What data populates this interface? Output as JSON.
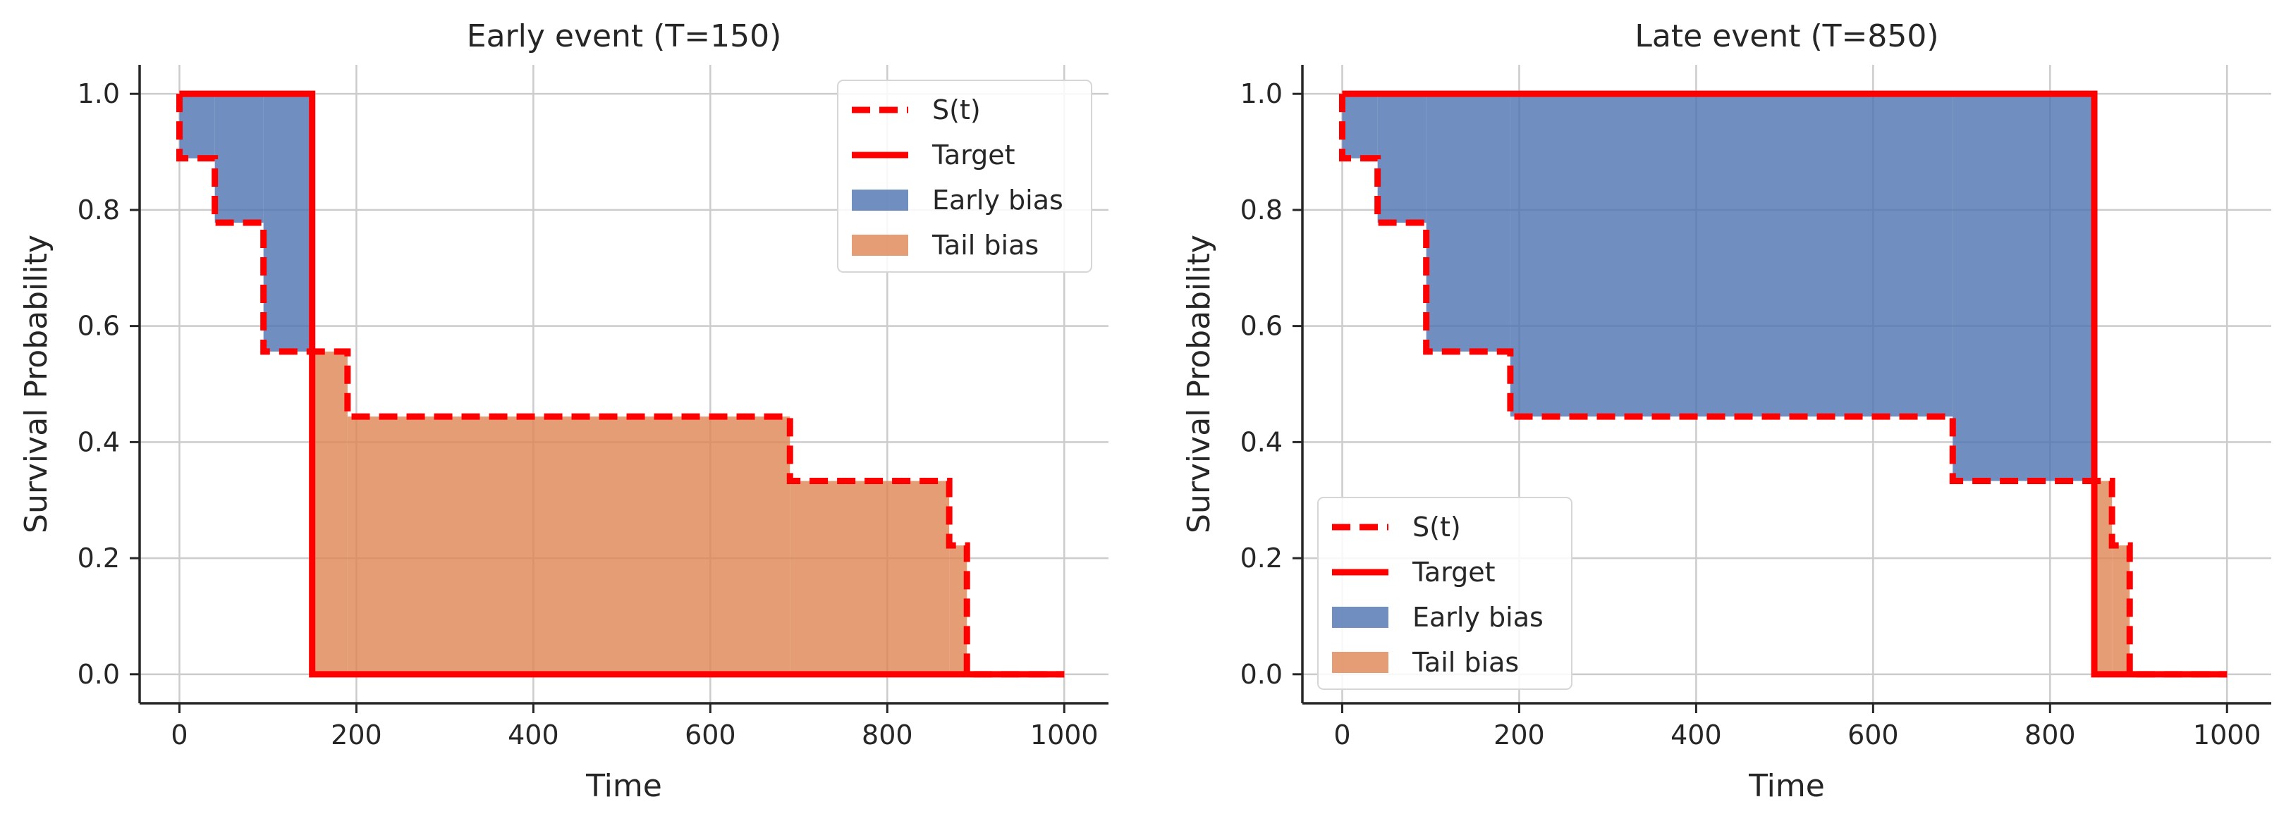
{
  "chart_data": [
    {
      "type": "area",
      "title": "Early event (T=150)",
      "xlabel": "Time",
      "ylabel": "Survival Probability",
      "xlim": [
        -45,
        1050
      ],
      "ylim": [
        -0.05,
        1.05
      ],
      "xticks": [
        0,
        200,
        400,
        600,
        800,
        1000
      ],
      "yticks": [
        0.0,
        0.2,
        0.4,
        0.6,
        0.8,
        1.0
      ],
      "xtick_labels": [
        "0",
        "200",
        "400",
        "600",
        "800",
        "1000"
      ],
      "ytick_labels": [
        "0.0",
        "0.2",
        "0.4",
        "0.6",
        "0.8",
        "1.0"
      ],
      "grid": true,
      "legend_position": "top-right",
      "legend": [
        "S(t)",
        "Target",
        "Early bias",
        "Tail bias"
      ],
      "event_time": 150,
      "survival_curve": {
        "name": "S(t)",
        "times": [
          0,
          40,
          95,
          190,
          690,
          870,
          890,
          1000
        ],
        "values": [
          0.889,
          0.778,
          0.556,
          0.444,
          0.333,
          0.222,
          0.0,
          0.0
        ]
      },
      "target_curve": {
        "name": "Target",
        "times": [
          0,
          150,
          150,
          1000
        ],
        "values": [
          1.0,
          1.0,
          0.0,
          0.0
        ]
      },
      "colors": {
        "survival": "#ff0000",
        "target": "#ff0000",
        "early_bias": "#4c72b0",
        "tail_bias": "#dd8452"
      }
    },
    {
      "type": "area",
      "title": "Late event (T=850)",
      "xlabel": "Time",
      "ylabel": "Survival Probability",
      "xlim": [
        -45,
        1050
      ],
      "ylim": [
        -0.05,
        1.05
      ],
      "xticks": [
        0,
        200,
        400,
        600,
        800,
        1000
      ],
      "yticks": [
        0.0,
        0.2,
        0.4,
        0.6,
        0.8,
        1.0
      ],
      "xtick_labels": [
        "0",
        "200",
        "400",
        "600",
        "800",
        "1000"
      ],
      "ytick_labels": [
        "0.0",
        "0.2",
        "0.4",
        "0.6",
        "0.8",
        "1.0"
      ],
      "grid": true,
      "legend_position": "bottom-left",
      "legend": [
        "S(t)",
        "Target",
        "Early bias",
        "Tail bias"
      ],
      "event_time": 850,
      "survival_curve": {
        "name": "S(t)",
        "times": [
          0,
          40,
          95,
          190,
          690,
          870,
          890,
          1000
        ],
        "values": [
          0.889,
          0.778,
          0.556,
          0.444,
          0.333,
          0.222,
          0.0,
          0.0
        ]
      },
      "target_curve": {
        "name": "Target",
        "times": [
          0,
          850,
          850,
          1000
        ],
        "values": [
          1.0,
          1.0,
          0.0,
          0.0
        ]
      },
      "colors": {
        "survival": "#ff0000",
        "target": "#ff0000",
        "early_bias": "#4c72b0",
        "tail_bias": "#dd8452"
      }
    }
  ]
}
